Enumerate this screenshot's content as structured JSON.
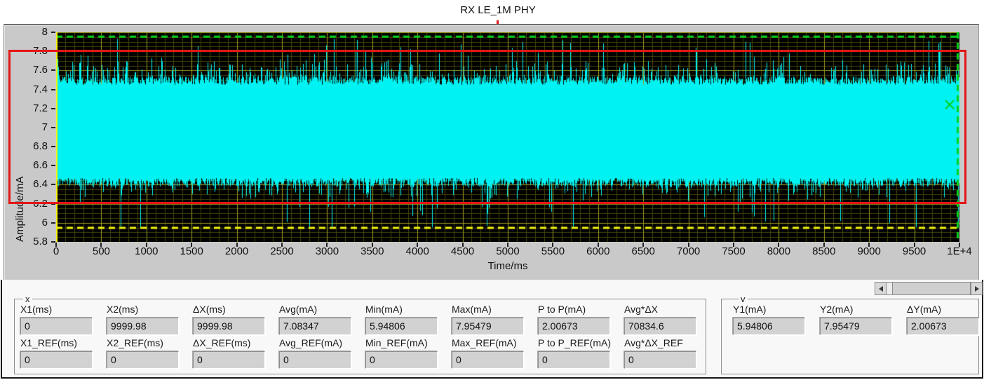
{
  "annotation": {
    "title": "RX LE_1M PHY"
  },
  "graph": {
    "y_axis_label": "Amplitude/mA",
    "x_axis_label": "Time/ms",
    "y_ticks": [
      "8",
      "7.8",
      "7.6",
      "7.4",
      "7.2",
      "7",
      "6.8",
      "6.6",
      "6.4",
      "6.2",
      "6",
      "5.8"
    ],
    "x_ticks": [
      "0",
      "500",
      "1000",
      "1500",
      "2000",
      "2500",
      "3000",
      "3500",
      "4000",
      "4500",
      "5000",
      "5500",
      "6000",
      "6500",
      "7000",
      "7500",
      "8000",
      "8500",
      "9000",
      "9500",
      "1E+4"
    ],
    "colors": {
      "plot_bg": "#000000",
      "grid_major": "#9c9c22",
      "grid_minor": "#454508",
      "trace": "#00f2f2",
      "cursor_green": "#00d41c",
      "cursor_yellow": "#f4f411",
      "annotation_red": "#e31616"
    }
  },
  "chart_data": {
    "type": "area",
    "title": "RX LE_1M PHY",
    "xlabel": "Time/ms",
    "ylabel": "Amplitude/mA",
    "xlim": [
      0,
      10000
    ],
    "ylim": [
      5.8,
      8.0
    ],
    "x_tick_step": 500,
    "y_tick_step": 0.2,
    "grid": "on",
    "description": "Dense noisy current-consumption waveform band spanning ~6.45 to ~7.55 mA with frequent upward spikes toward 7.9 mA and downward dropouts toward 5.95 mA across 0-10000 ms",
    "stats": {
      "avg_mA": 7.08347,
      "min_mA": 5.94806,
      "max_mA": 7.95479,
      "p_to_p_mA": 2.00673,
      "avg_times_dx": 70834.6
    },
    "cursors": {
      "x1_ms": 0,
      "x2_ms": 9999.98,
      "y1_mA": 5.94806,
      "y2_mA": 7.95479
    },
    "annotations": {
      "red_box_y_top_mA": 7.8,
      "red_box_y_bottom_mA": 6.2
    }
  },
  "x_panel": {
    "label": "x",
    "columns": [
      {
        "label": "X1(ms)",
        "value": "0",
        "ref_label": "X1_REF(ms)",
        "ref_value": "0"
      },
      {
        "label": "X2(ms)",
        "value": "9999.98",
        "ref_label": "X2_REF(ms)",
        "ref_value": "0"
      },
      {
        "label": "ΔX(ms)",
        "value": "9999.98",
        "ref_label": "ΔX_REF(ms)",
        "ref_value": "0"
      },
      {
        "label": "Avg(mA)",
        "value": "7.08347",
        "ref_label": "Avg_REF(mA)",
        "ref_value": "0"
      },
      {
        "label": "Min(mA)",
        "value": "5.94806",
        "ref_label": "Min_REF(mA)",
        "ref_value": "0"
      },
      {
        "label": "Max(mA)",
        "value": "7.95479",
        "ref_label": "Max_REF(mA)",
        "ref_value": "0"
      },
      {
        "label": "P to P(mA)",
        "value": "2.00673",
        "ref_label": "P to P_REF(mA)",
        "ref_value": "0"
      },
      {
        "label": "Avg*ΔX",
        "value": "70834.6",
        "ref_label": "Avg*ΔX_REF",
        "ref_value": "0"
      }
    ]
  },
  "y_panel": {
    "label": "v",
    "fields": [
      {
        "label": "Y1(mA)",
        "value": "5.94806"
      },
      {
        "label": "Y2(mA)",
        "value": "7.95479"
      },
      {
        "label": "ΔY(mA)",
        "value": "2.00673"
      }
    ]
  }
}
